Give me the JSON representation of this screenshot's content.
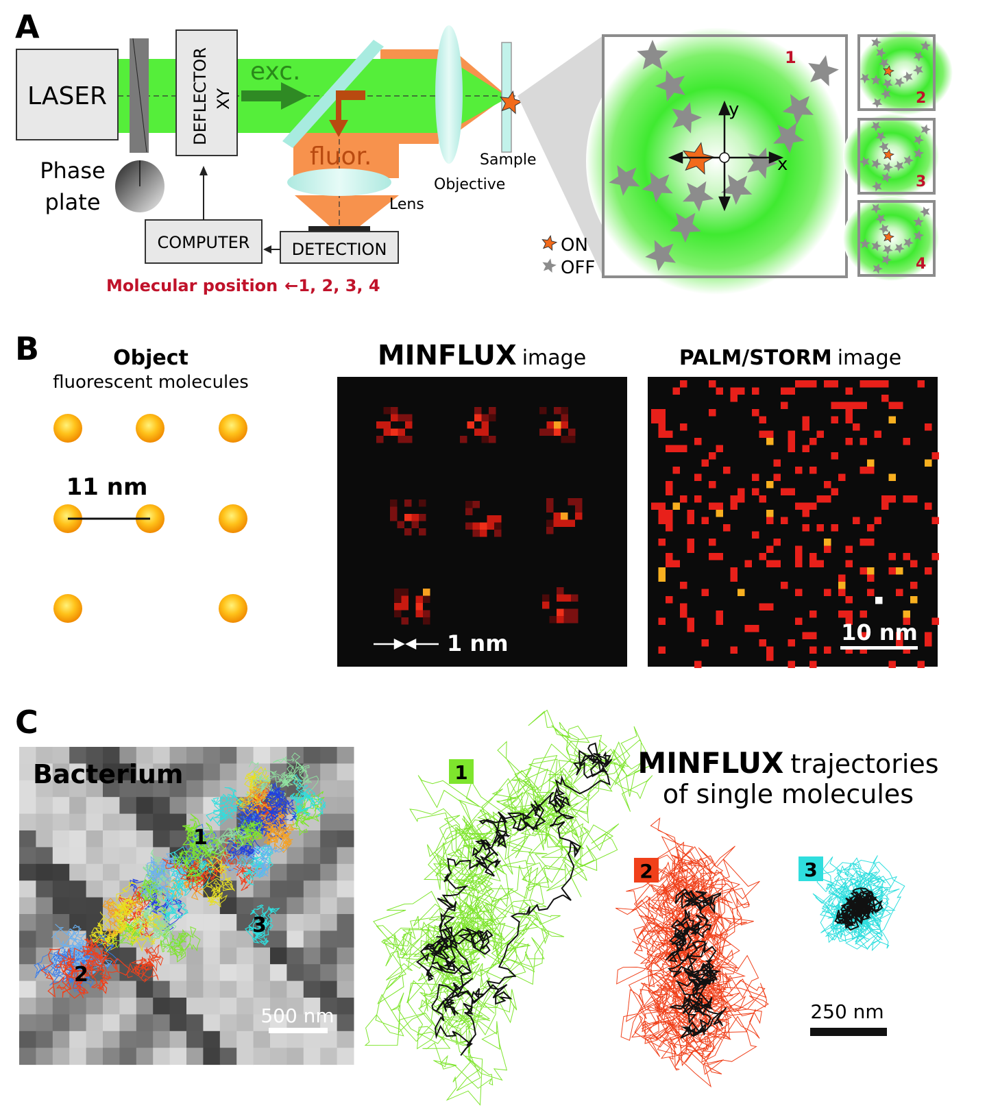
{
  "panel_a": {
    "label": "A",
    "laser": "LASER",
    "phase_plate": [
      "Phase",
      "plate"
    ],
    "deflector": [
      "DEFLECTOR",
      "XY"
    ],
    "exc": "exc.",
    "fluor": "fluor.",
    "lens": "Lens",
    "objective": "Objective",
    "sample": "Sample",
    "computer": "COMPUTER",
    "detection": "DETECTION",
    "molecular_position": "Molecular position",
    "positions": "1, 2, 3, 4",
    "legend_on": "ON",
    "legend_off": "OFF",
    "axis_x": "x",
    "axis_y": "y",
    "insets": [
      "1",
      "2",
      "3",
      "4"
    ],
    "colors": {
      "beam": "#55ee3a",
      "fluor": "#f7924d",
      "on": "#f26a1b",
      "off": "#8c8c8c",
      "red_text": "#c0122a"
    }
  },
  "panel_b": {
    "label": "B",
    "object_title": "Object",
    "object_subtitle": "fluorescent molecules",
    "spacing": "11 nm",
    "minflux_title_bold": "MINFLUX",
    "minflux_title": "image",
    "minflux_scale": "1 nm",
    "palm_title_bold": "PALM/STORM",
    "palm_title": "image",
    "palm_scale": "10 nm"
  },
  "panel_c": {
    "label": "C",
    "bacterium": "Bacterium",
    "scale_left": "500 nm",
    "title_bold": "MINFLUX",
    "title_rest": "trajectories",
    "title_line2": "of single molecules",
    "scale_right": "250 nm",
    "tracks": [
      {
        "id": "1",
        "color": "#7ee52d"
      },
      {
        "id": "2",
        "color": "#f0401a"
      },
      {
        "id": "3",
        "color": "#2fdede"
      }
    ]
  }
}
